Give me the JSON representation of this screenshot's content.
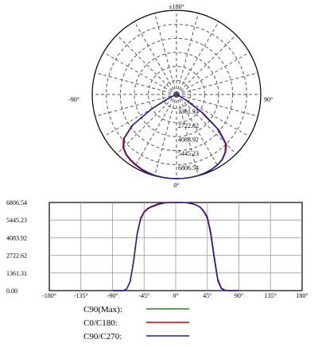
{
  "chart_data": [
    {
      "type": "polar",
      "angle_labels": {
        "top": "±180°",
        "left": "-90°",
        "right": "90°",
        "bottom": "0°"
      },
      "radial_ticks": [
        "1361.31",
        "2722.62",
        "4083.92",
        "5445.23",
        "6806.54"
      ],
      "rmax": 6806.54,
      "series": [
        {
          "key": "c0c180",
          "color": "#cc0000",
          "angles": [
            -70,
            -65,
            -60,
            -55,
            -50,
            -45,
            -40,
            -35,
            -30,
            -25,
            -20,
            -15,
            -10,
            -5,
            0,
            5,
            10,
            15,
            20,
            25,
            30,
            35,
            40,
            45,
            50,
            55,
            60,
            65,
            70
          ],
          "values": [
            120,
            700,
            2300,
            4400,
            5600,
            6100,
            6350,
            6500,
            6600,
            6700,
            6760,
            6790,
            6800,
            6806,
            6806,
            6806,
            6800,
            6790,
            6760,
            6700,
            6600,
            6450,
            6150,
            5700,
            4500,
            2600,
            900,
            200,
            40
          ]
        },
        {
          "key": "c90c270",
          "color": "#1a1aa6",
          "angles": [
            -70,
            -65,
            -60,
            -55,
            -50,
            -45,
            -40,
            -35,
            -30,
            -25,
            -20,
            -15,
            -10,
            -5,
            0,
            5,
            10,
            15,
            20,
            25,
            30,
            35,
            40,
            45,
            50,
            55,
            60,
            65,
            70
          ],
          "values": [
            120,
            650,
            2200,
            4300,
            5500,
            6050,
            6300,
            6450,
            6550,
            6650,
            6720,
            6770,
            6790,
            6800,
            6806,
            6806,
            6800,
            6780,
            6740,
            6680,
            6580,
            6420,
            6100,
            5600,
            4300,
            2400,
            750,
            150,
            30
          ]
        }
      ]
    },
    {
      "type": "line",
      "xlim": [
        -180,
        180
      ],
      "ylim": [
        0,
        6806.54
      ],
      "x_ticks": [
        "-180°",
        "-135°",
        "-90°",
        "-45°",
        "0°",
        "45°",
        "90°",
        "135°",
        "180°"
      ],
      "y_ticks": [
        "0.00",
        "1361.31",
        "2722.62",
        "4083.92",
        "5445.23",
        "6806.54"
      ],
      "grid": true,
      "series": [
        {
          "key": "c0c180",
          "color": "#cc0000",
          "x": [
            -90,
            -75,
            -70,
            -65,
            -60,
            -55,
            -50,
            -45,
            -40,
            -35,
            -30,
            -25,
            -20,
            -15,
            -10,
            -5,
            0,
            5,
            10,
            15,
            20,
            25,
            30,
            35,
            40,
            45,
            50,
            55,
            60,
            65,
            70,
            75,
            90
          ],
          "y": [
            0,
            0,
            120,
            700,
            2300,
            4400,
            5600,
            6100,
            6350,
            6500,
            6600,
            6700,
            6760,
            6790,
            6800,
            6806,
            6806,
            6806,
            6800,
            6790,
            6760,
            6700,
            6600,
            6450,
            6150,
            5700,
            4500,
            2600,
            900,
            200,
            40,
            0,
            0
          ]
        },
        {
          "key": "c90c270",
          "color": "#1a1aa6",
          "x": [
            -90,
            -75,
            -70,
            -65,
            -60,
            -55,
            -50,
            -45,
            -40,
            -35,
            -30,
            -25,
            -20,
            -15,
            -10,
            -5,
            0,
            5,
            10,
            15,
            20,
            25,
            30,
            35,
            40,
            45,
            50,
            55,
            60,
            65,
            70,
            75,
            90
          ],
          "y": [
            0,
            0,
            120,
            650,
            2200,
            4300,
            5500,
            6050,
            6300,
            6450,
            6550,
            6650,
            6720,
            6770,
            6790,
            6800,
            6806,
            6806,
            6800,
            6780,
            6740,
            6680,
            6580,
            6420,
            6100,
            5600,
            4300,
            2400,
            750,
            150,
            30,
            0,
            0
          ]
        }
      ]
    }
  ],
  "legend": [
    {
      "label": "C90(Max):",
      "color": "#1e8a1e"
    },
    {
      "label": "C0/C180:",
      "color": "#cc0000"
    },
    {
      "label": "C90/C270:",
      "color": "#1a1aa6"
    }
  ]
}
